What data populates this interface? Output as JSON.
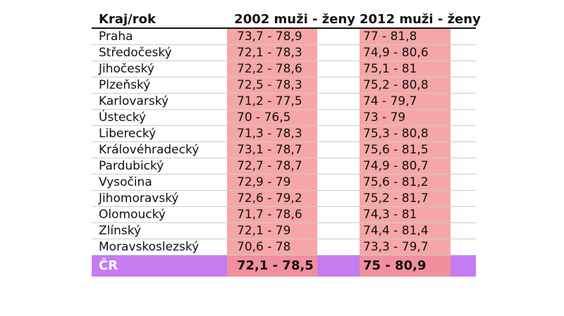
{
  "table": {
    "headers": {
      "region": "Kraj/rok",
      "col2002": "2002 muži - ženy",
      "col2012": "2012 muži - ženy"
    },
    "rows": [
      {
        "region": "Praha",
        "v2002": "73,7 - 78,9",
        "v2012": "77 - 81,8"
      },
      {
        "region": "Středočeský",
        "v2002": "72,1 - 78,3",
        "v2012": "74,9 - 80,6"
      },
      {
        "region": "Jihočeský",
        "v2002": "72,2 - 78,6",
        "v2012": "75,1 - 81"
      },
      {
        "region": "Plzeňský",
        "v2002": "72,5 - 78,3",
        "v2012": "75,2 - 80,8"
      },
      {
        "region": "Karlovarský",
        "v2002": "71,2 - 77,5",
        "v2012": "74 - 79,7"
      },
      {
        "region": "Ústecký",
        "v2002": "70 - 76,5",
        "v2012": "73 - 79"
      },
      {
        "region": "Liberecký",
        "v2002": "71,3 - 78,3",
        "v2012": "75,3 - 80,8"
      },
      {
        "region": "Královéhradecký",
        "v2002": "73,1 - 78,7",
        "v2012": "75,6 - 81,5"
      },
      {
        "region": "Pardubický",
        "v2002": "72,7 - 78,7",
        "v2012": "74,9 - 80,7"
      },
      {
        "region": "Vysočina",
        "v2002": "72,9 - 79",
        "v2012": "75,6 - 81,2"
      },
      {
        "region": "Jihomoravský",
        "v2002": "72,6 - 79,2",
        "v2012": "75,2 - 81,7"
      },
      {
        "region": "Olomoucký",
        "v2002": "71,7 - 78,6",
        "v2012": "74,3 - 81"
      },
      {
        "region": "Zlínský",
        "v2002": "72,1 - 79",
        "v2012": "74,4 - 81,4"
      },
      {
        "region": "Moravskoslezský",
        "v2002": "70,6 - 78",
        "v2012": "73,3 - 79,7"
      }
    ],
    "total": {
      "region": "ČR",
      "v2002": "72,1 - 78,5",
      "v2012": "75 - 80,9"
    }
  },
  "colors": {
    "highlight": "#f7a6a6",
    "total_row": "#c47cf0",
    "total_highlight": "#f28f9e"
  }
}
